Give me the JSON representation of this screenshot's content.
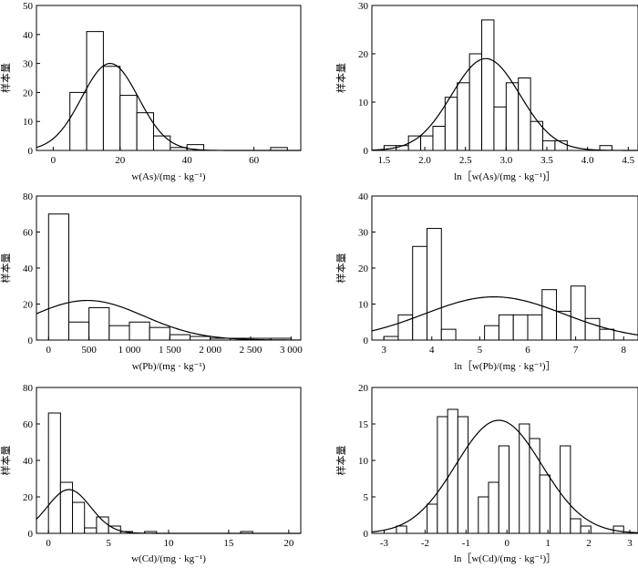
{
  "chart_data": [
    {
      "id": "as",
      "type": "bar",
      "title": "",
      "ylabel": "样本量",
      "xlabel": "w(As)/(mg · kg⁻¹)",
      "xlim": [
        -5,
        74
      ],
      "ylim": [
        0,
        50
      ],
      "xticks": [
        {
          "v": 0,
          "l": "0"
        },
        {
          "v": 20,
          "l": "20"
        },
        {
          "v": 40,
          "l": "40"
        },
        {
          "v": 60,
          "l": "60"
        }
      ],
      "yticks": [
        {
          "v": 0,
          "l": "0"
        },
        {
          "v": 10,
          "l": "10"
        },
        {
          "v": 20,
          "l": "20"
        },
        {
          "v": 30,
          "l": "30"
        },
        {
          "v": 40,
          "l": "40"
        },
        {
          "v": 50,
          "l": "50"
        }
      ],
      "bins": [
        {
          "x0": 5,
          "x1": 10,
          "count": 20
        },
        {
          "x0": 10,
          "x1": 15,
          "count": 41
        },
        {
          "x0": 15,
          "x1": 20,
          "count": 29
        },
        {
          "x0": 20,
          "x1": 25,
          "count": 19
        },
        {
          "x0": 25,
          "x1": 30,
          "count": 13
        },
        {
          "x0": 30,
          "x1": 35,
          "count": 5
        },
        {
          "x0": 35,
          "x1": 40,
          "count": 1
        },
        {
          "x0": 40,
          "x1": 45,
          "count": 2
        },
        {
          "x0": 65,
          "x1": 70,
          "count": 1
        }
      ],
      "normal_fit": {
        "mean": 17,
        "sd": 8.5,
        "peak": 30
      }
    },
    {
      "id": "ln-as",
      "type": "bar",
      "title": "",
      "ylabel": "样本量",
      "xlabel": "ln［w(As)/(mg · kg⁻¹)］",
      "xlim": [
        1.35,
        4.62
      ],
      "ylim": [
        0,
        30
      ],
      "xticks": [
        {
          "v": 1.5,
          "l": "1.5"
        },
        {
          "v": 2.0,
          "l": "2.0"
        },
        {
          "v": 2.5,
          "l": "2.5"
        },
        {
          "v": 3.0,
          "l": "3.0"
        },
        {
          "v": 3.5,
          "l": "3.5"
        },
        {
          "v": 4.0,
          "l": "4.0"
        },
        {
          "v": 4.5,
          "l": "4.5"
        }
      ],
      "yticks": [
        {
          "v": 0,
          "l": "0"
        },
        {
          "v": 10,
          "l": "10"
        },
        {
          "v": 20,
          "l": "20"
        },
        {
          "v": 30,
          "l": "30"
        }
      ],
      "bins": [
        {
          "x0": 1.5,
          "x1": 1.65,
          "count": 1
        },
        {
          "x0": 1.65,
          "x1": 1.8,
          "count": 1
        },
        {
          "x0": 1.8,
          "x1": 1.95,
          "count": 3
        },
        {
          "x0": 1.95,
          "x1": 2.1,
          "count": 3
        },
        {
          "x0": 2.1,
          "x1": 2.25,
          "count": 5
        },
        {
          "x0": 2.25,
          "x1": 2.4,
          "count": 11
        },
        {
          "x0": 2.4,
          "x1": 2.55,
          "count": 14
        },
        {
          "x0": 2.55,
          "x1": 2.7,
          "count": 20
        },
        {
          "x0": 2.7,
          "x1": 2.85,
          "count": 27
        },
        {
          "x0": 2.85,
          "x1": 3.0,
          "count": 9
        },
        {
          "x0": 3.0,
          "x1": 3.15,
          "count": 14
        },
        {
          "x0": 3.15,
          "x1": 3.3,
          "count": 15
        },
        {
          "x0": 3.3,
          "x1": 3.45,
          "count": 6
        },
        {
          "x0": 3.45,
          "x1": 3.6,
          "count": 2
        },
        {
          "x0": 3.6,
          "x1": 3.75,
          "count": 2
        },
        {
          "x0": 4.15,
          "x1": 4.3,
          "count": 1
        }
      ],
      "normal_fit": {
        "mean": 2.75,
        "sd": 0.42,
        "peak": 19
      }
    },
    {
      "id": "pb",
      "type": "bar",
      "title": "",
      "ylabel": "样本量",
      "xlabel": "w(Pb)/(mg · kg⁻¹)",
      "xlim": [
        -150,
        3120
      ],
      "ylim": [
        0,
        80
      ],
      "xticks": [
        {
          "v": 0,
          "l": "0"
        },
        {
          "v": 500,
          "l": "500"
        },
        {
          "v": 1000,
          "l": "1 000"
        },
        {
          "v": 1500,
          "l": "1 500"
        },
        {
          "v": 2000,
          "l": "2 000"
        },
        {
          "v": 2500,
          "l": "2 500"
        },
        {
          "v": 3000,
          "l": "3 000"
        }
      ],
      "yticks": [
        {
          "v": 0,
          "l": "0"
        },
        {
          "v": 20,
          "l": "20"
        },
        {
          "v": 40,
          "l": "40"
        },
        {
          "v": 60,
          "l": "60"
        },
        {
          "v": 80,
          "l": "80"
        }
      ],
      "bins": [
        {
          "x0": 0,
          "x1": 250,
          "count": 70
        },
        {
          "x0": 250,
          "x1": 500,
          "count": 10
        },
        {
          "x0": 500,
          "x1": 750,
          "count": 18
        },
        {
          "x0": 750,
          "x1": 1000,
          "count": 8
        },
        {
          "x0": 1000,
          "x1": 1250,
          "count": 10
        },
        {
          "x0": 1250,
          "x1": 1500,
          "count": 7
        },
        {
          "x0": 1500,
          "x1": 1750,
          "count": 3
        },
        {
          "x0": 1750,
          "x1": 2000,
          "count": 2
        },
        {
          "x0": 2000,
          "x1": 2250,
          "count": 1
        },
        {
          "x0": 2250,
          "x1": 2500,
          "count": 1
        },
        {
          "x0": 2500,
          "x1": 2750,
          "count": 1
        },
        {
          "x0": 2750,
          "x1": 3000,
          "count": 1
        }
      ],
      "normal_fit": {
        "mean": 480,
        "sd": 700,
        "peak": 22
      }
    },
    {
      "id": "ln-pb",
      "type": "bar",
      "title": "",
      "ylabel": "样本量",
      "xlabel": "ln［w(Pb)/(mg · kg⁻¹)］",
      "xlim": [
        2.75,
        8.3
      ],
      "ylim": [
        0,
        40
      ],
      "xticks": [
        {
          "v": 3,
          "l": "3"
        },
        {
          "v": 4,
          "l": "4"
        },
        {
          "v": 5,
          "l": "5"
        },
        {
          "v": 6,
          "l": "6"
        },
        {
          "v": 7,
          "l": "7"
        },
        {
          "v": 8,
          "l": "8"
        }
      ],
      "yticks": [
        {
          "v": 0,
          "l": "0"
        },
        {
          "v": 10,
          "l": "10"
        },
        {
          "v": 20,
          "l": "20"
        },
        {
          "v": 30,
          "l": "30"
        },
        {
          "v": 40,
          "l": "40"
        }
      ],
      "bins": [
        {
          "x0": 3.0,
          "x1": 3.3,
          "count": 1
        },
        {
          "x0": 3.3,
          "x1": 3.6,
          "count": 7
        },
        {
          "x0": 3.6,
          "x1": 3.9,
          "count": 26
        },
        {
          "x0": 3.9,
          "x1": 4.2,
          "count": 31
        },
        {
          "x0": 4.2,
          "x1": 4.5,
          "count": 3
        },
        {
          "x0": 5.1,
          "x1": 5.4,
          "count": 4
        },
        {
          "x0": 5.4,
          "x1": 5.7,
          "count": 7
        },
        {
          "x0": 5.7,
          "x1": 6.0,
          "count": 7
        },
        {
          "x0": 6.0,
          "x1": 6.3,
          "count": 7
        },
        {
          "x0": 6.3,
          "x1": 6.6,
          "count": 14
        },
        {
          "x0": 6.6,
          "x1": 6.9,
          "count": 8
        },
        {
          "x0": 6.9,
          "x1": 7.2,
          "count": 15
        },
        {
          "x0": 7.2,
          "x1": 7.5,
          "count": 6
        },
        {
          "x0": 7.5,
          "x1": 7.8,
          "count": 3
        }
      ],
      "normal_fit": {
        "mean": 5.3,
        "sd": 1.45,
        "peak": 12
      }
    },
    {
      "id": "cd",
      "type": "bar",
      "title": "",
      "ylabel": "样本量",
      "xlabel": "w(Cd)/(mg · kg⁻¹)",
      "xlim": [
        -1,
        21
      ],
      "ylim": [
        0,
        80
      ],
      "xticks": [
        {
          "v": 0,
          "l": "0"
        },
        {
          "v": 5,
          "l": "5"
        },
        {
          "v": 10,
          "l": "10"
        },
        {
          "v": 15,
          "l": "15"
        },
        {
          "v": 20,
          "l": "20"
        }
      ],
      "yticks": [
        {
          "v": 0,
          "l": "0"
        },
        {
          "v": 20,
          "l": "20"
        },
        {
          "v": 40,
          "l": "40"
        },
        {
          "v": 60,
          "l": "60"
        },
        {
          "v": 80,
          "l": "80"
        }
      ],
      "bins": [
        {
          "x0": 0,
          "x1": 1,
          "count": 66
        },
        {
          "x0": 1,
          "x1": 2,
          "count": 28
        },
        {
          "x0": 2,
          "x1": 3,
          "count": 17
        },
        {
          "x0": 3,
          "x1": 4,
          "count": 3
        },
        {
          "x0": 4,
          "x1": 5,
          "count": 9
        },
        {
          "x0": 5,
          "x1": 6,
          "count": 4
        },
        {
          "x0": 6,
          "x1": 7,
          "count": 1
        },
        {
          "x0": 8,
          "x1": 9,
          "count": 1
        },
        {
          "x0": 16,
          "x1": 17,
          "count": 1
        }
      ],
      "normal_fit": {
        "mean": 1.7,
        "sd": 1.8,
        "peak": 24
      }
    },
    {
      "id": "ln-cd",
      "type": "bar",
      "title": "",
      "ylabel": "样本量",
      "xlabel": "ln［w(Cd)/(mg · kg⁻¹)］",
      "xlim": [
        -3.3,
        3.2
      ],
      "ylim": [
        0,
        20
      ],
      "xticks": [
        {
          "v": -3,
          "l": "-3"
        },
        {
          "v": -2,
          "l": "-2"
        },
        {
          "v": -1,
          "l": "-1"
        },
        {
          "v": 0,
          "l": "0"
        },
        {
          "v": 1,
          "l": "1"
        },
        {
          "v": 2,
          "l": "2"
        },
        {
          "v": 3,
          "l": "3"
        }
      ],
      "yticks": [
        {
          "v": 0,
          "l": "0"
        },
        {
          "v": 5,
          "l": "5"
        },
        {
          "v": 10,
          "l": "10"
        },
        {
          "v": 15,
          "l": "15"
        },
        {
          "v": 20,
          "l": "20"
        }
      ],
      "bins": [
        {
          "x0": -2.7,
          "x1": -2.45,
          "count": 1
        },
        {
          "x0": -1.95,
          "x1": -1.7,
          "count": 4
        },
        {
          "x0": -1.7,
          "x1": -1.45,
          "count": 16
        },
        {
          "x0": -1.45,
          "x1": -1.2,
          "count": 17
        },
        {
          "x0": -1.2,
          "x1": -0.95,
          "count": 16
        },
        {
          "x0": -0.7,
          "x1": -0.45,
          "count": 5
        },
        {
          "x0": -0.45,
          "x1": -0.2,
          "count": 7
        },
        {
          "x0": -0.2,
          "x1": 0.05,
          "count": 12
        },
        {
          "x0": 0.3,
          "x1": 0.55,
          "count": 15
        },
        {
          "x0": 0.55,
          "x1": 0.8,
          "count": 13
        },
        {
          "x0": 0.8,
          "x1": 1.05,
          "count": 8
        },
        {
          "x0": 1.3,
          "x1": 1.55,
          "count": 12
        },
        {
          "x0": 1.55,
          "x1": 1.8,
          "count": 2
        },
        {
          "x0": 1.8,
          "x1": 2.05,
          "count": 1
        },
        {
          "x0": 2.6,
          "x1": 2.85,
          "count": 1
        }
      ],
      "normal_fit": {
        "mean": -0.2,
        "sd": 1.05,
        "peak": 15.5
      }
    }
  ]
}
